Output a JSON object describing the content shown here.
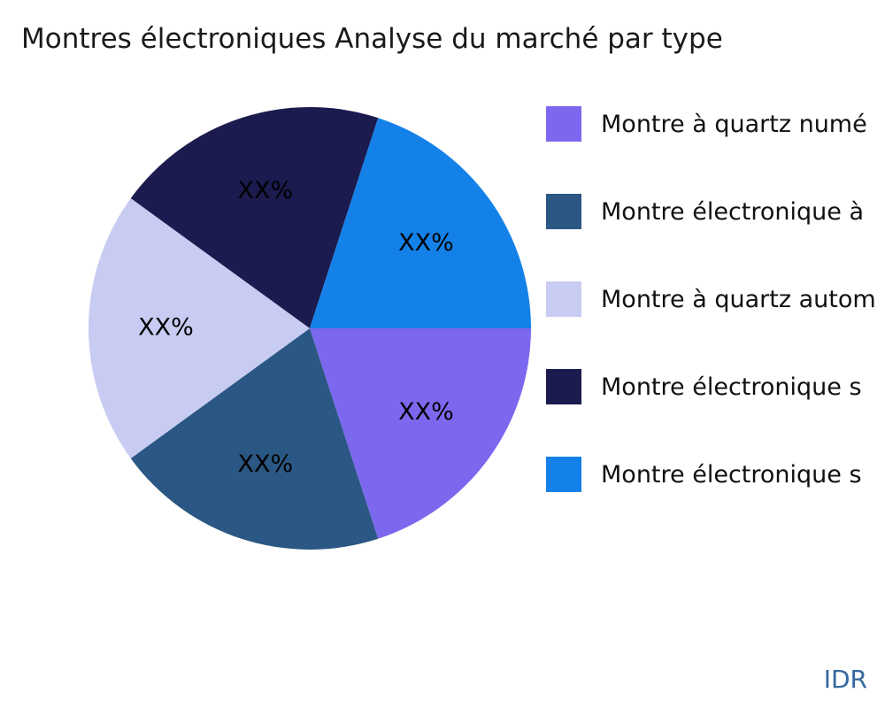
{
  "title": "Montres électroniques Analyse du marché par type",
  "watermark": "IDR",
  "chart_data": {
    "type": "pie",
    "title": "Montres électroniques Analyse du marché par type",
    "legend_position": "right",
    "start_angle_deg": 0,
    "direction": "clockwise",
    "value_label_placeholder": "XX%",
    "slices": [
      {
        "label": "Montre à quartz numé",
        "value": 20,
        "display": "XX%",
        "color": "#7B68EE"
      },
      {
        "label": "Montre électronique à",
        "value": 20,
        "display": "XX%",
        "color": "#2A5783"
      },
      {
        "label": "Montre à quartz autom",
        "value": 20,
        "display": "XX%",
        "color": "#C9CCF2"
      },
      {
        "label": "Montre électronique s",
        "value": 20,
        "display": "XX%",
        "color": "#1B1B4F"
      },
      {
        "label": "Montre électronique s",
        "value": 20,
        "display": "XX%",
        "color": "#1381E8"
      }
    ]
  }
}
